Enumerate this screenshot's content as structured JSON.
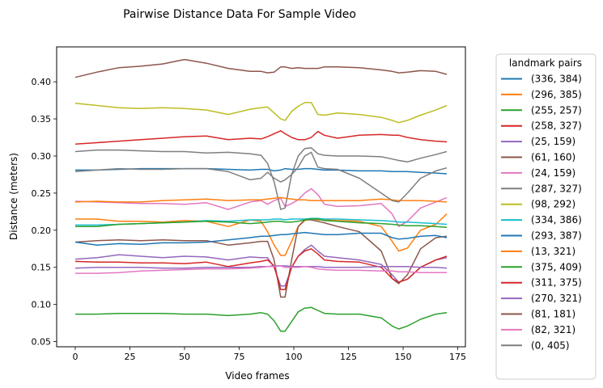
{
  "chart_data": {
    "type": "line",
    "title": "Pairwise Distance Data For Sample Video",
    "xlabel": "Video frames",
    "ylabel": "Distance (meters)",
    "xlim": [
      -8.5,
      178.5
    ],
    "ylim": [
      0.043,
      0.447
    ],
    "xticks": [
      0,
      25,
      50,
      75,
      100,
      125,
      150,
      175
    ],
    "yticks": [
      0.05,
      0.1,
      0.15,
      0.2,
      0.25,
      0.3,
      0.35,
      0.4
    ],
    "ytick_labels": [
      "0.05",
      "0.10",
      "0.15",
      "0.20",
      "0.25",
      "0.30",
      "0.35",
      "0.40"
    ],
    "grid": false,
    "legend": {
      "title": "landmark pairs",
      "placement": "outside-right"
    },
    "x": [
      0,
      10,
      20,
      30,
      40,
      50,
      60,
      70,
      80,
      85,
      88,
      91,
      94,
      96,
      99,
      102,
      105,
      108,
      111,
      114,
      120,
      130,
      140,
      145,
      148,
      152,
      158,
      165,
      170
    ],
    "series": [
      {
        "name": "(336, 384)",
        "color": "#1f77b4",
        "values": [
          0.281,
          0.281,
          0.282,
          0.283,
          0.283,
          0.283,
          0.283,
          0.282,
          0.281,
          0.282,
          0.282,
          0.28,
          0.281,
          0.283,
          0.282,
          0.282,
          0.283,
          0.283,
          0.282,
          0.281,
          0.281,
          0.28,
          0.28,
          0.279,
          0.279,
          0.279,
          0.278,
          0.277,
          0.276
        ]
      },
      {
        "name": "(296, 385)",
        "color": "#ff7f0e",
        "values": [
          0.215,
          0.215,
          0.212,
          0.212,
          0.211,
          0.213,
          0.212,
          0.205,
          0.214,
          0.212,
          0.198,
          0.18,
          0.166,
          0.166,
          0.185,
          0.205,
          0.213,
          0.216,
          0.214,
          0.214,
          0.213,
          0.212,
          0.205,
          0.185,
          0.172,
          0.176,
          0.2,
          0.208,
          0.222
        ]
      },
      {
        "name": "(255, 257)",
        "color": "#2ca02c",
        "values": [
          0.087,
          0.087,
          0.088,
          0.088,
          0.088,
          0.087,
          0.087,
          0.085,
          0.087,
          0.089,
          0.087,
          0.078,
          0.064,
          0.064,
          0.077,
          0.09,
          0.095,
          0.096,
          0.092,
          0.088,
          0.087,
          0.087,
          0.082,
          0.071,
          0.067,
          0.071,
          0.08,
          0.087,
          0.089
        ]
      },
      {
        "name": "(258, 327)",
        "color": "#d62728",
        "values": [
          0.316,
          0.318,
          0.32,
          0.322,
          0.324,
          0.326,
          0.327,
          0.322,
          0.324,
          0.323,
          0.326,
          0.33,
          0.334,
          0.33,
          0.325,
          0.322,
          0.322,
          0.325,
          0.333,
          0.328,
          0.324,
          0.328,
          0.329,
          0.328,
          0.328,
          0.325,
          0.322,
          0.32,
          0.319
        ]
      },
      {
        "name": "(25, 159)",
        "color": "#9467bd",
        "values": [
          0.161,
          0.163,
          0.167,
          0.165,
          0.163,
          0.165,
          0.164,
          0.16,
          0.164,
          0.163,
          0.163,
          0.15,
          0.125,
          0.125,
          0.15,
          0.165,
          0.174,
          0.18,
          0.172,
          0.165,
          0.163,
          0.16,
          0.154,
          0.14,
          0.13,
          0.134,
          0.15,
          0.16,
          0.163
        ]
      },
      {
        "name": "(61, 160)",
        "color": "#8c564b",
        "values": [
          0.184,
          0.186,
          0.187,
          0.186,
          0.187,
          0.186,
          0.186,
          0.18,
          0.183,
          0.185,
          0.185,
          0.16,
          0.11,
          0.11,
          0.16,
          0.205,
          0.214,
          0.214,
          0.212,
          0.21,
          0.205,
          0.198,
          0.172,
          0.135,
          0.128,
          0.14,
          0.175,
          0.19,
          0.192
        ]
      },
      {
        "name": "(24, 159)",
        "color": "#e377c2",
        "values": [
          0.239,
          0.238,
          0.237,
          0.236,
          0.236,
          0.235,
          0.237,
          0.228,
          0.238,
          0.24,
          0.235,
          0.24,
          0.243,
          0.232,
          0.236,
          0.241,
          0.25,
          0.256,
          0.248,
          0.235,
          0.232,
          0.233,
          0.236,
          0.222,
          0.205,
          0.212,
          0.23,
          0.238,
          0.244
        ]
      },
      {
        "name": "(287, 327)",
        "color": "#7f7f7f",
        "values": [
          0.306,
          0.308,
          0.308,
          0.307,
          0.306,
          0.306,
          0.304,
          0.305,
          0.303,
          0.301,
          0.29,
          0.265,
          0.228,
          0.23,
          0.275,
          0.3,
          0.31,
          0.311,
          0.303,
          0.301,
          0.3,
          0.3,
          0.299,
          0.296,
          0.294,
          0.292,
          0.297,
          0.302,
          0.306
        ]
      },
      {
        "name": "(98, 292)",
        "color": "#bcbd22",
        "values": [
          0.371,
          0.368,
          0.365,
          0.364,
          0.365,
          0.364,
          0.362,
          0.356,
          0.363,
          0.365,
          0.366,
          0.358,
          0.35,
          0.348,
          0.36,
          0.367,
          0.372,
          0.372,
          0.356,
          0.355,
          0.358,
          0.356,
          0.352,
          0.348,
          0.345,
          0.348,
          0.355,
          0.362,
          0.368
        ]
      },
      {
        "name": "(334, 386)",
        "color": "#17becf",
        "values": [
          0.207,
          0.207,
          0.208,
          0.209,
          0.21,
          0.211,
          0.213,
          0.212,
          0.214,
          0.214,
          0.214,
          0.215,
          0.215,
          0.214,
          0.215,
          0.215,
          0.215,
          0.216,
          0.216,
          0.215,
          0.215,
          0.214,
          0.213,
          0.212,
          0.211,
          0.211,
          0.21,
          0.209,
          0.208
        ]
      },
      {
        "name": "(293, 387)",
        "color": "#1f77b4",
        "values": [
          0.184,
          0.18,
          0.182,
          0.181,
          0.183,
          0.183,
          0.184,
          0.187,
          0.19,
          0.192,
          0.192,
          0.193,
          0.194,
          0.194,
          0.195,
          0.196,
          0.197,
          0.196,
          0.195,
          0.194,
          0.194,
          0.196,
          0.196,
          0.19,
          0.188,
          0.189,
          0.192,
          0.193,
          0.19
        ]
      },
      {
        "name": "(13, 321)",
        "color": "#ff7f0e",
        "values": [
          0.238,
          0.239,
          0.238,
          0.238,
          0.24,
          0.241,
          0.242,
          0.24,
          0.241,
          0.241,
          0.242,
          0.243,
          0.244,
          0.243,
          0.242,
          0.241,
          0.241,
          0.24,
          0.24,
          0.24,
          0.24,
          0.24,
          0.242,
          0.241,
          0.24,
          0.24,
          0.24,
          0.239,
          0.238
        ]
      },
      {
        "name": "(375, 409)",
        "color": "#2ca02c",
        "values": [
          0.205,
          0.205,
          0.208,
          0.209,
          0.21,
          0.211,
          0.212,
          0.211,
          0.209,
          0.21,
          0.211,
          0.212,
          0.212,
          0.211,
          0.211,
          0.212,
          0.214,
          0.215,
          0.215,
          0.213,
          0.212,
          0.21,
          0.209,
          0.208,
          0.207,
          0.206,
          0.206,
          0.205,
          0.204
        ]
      },
      {
        "name": "(311, 375)",
        "color": "#d62728",
        "values": [
          0.158,
          0.157,
          0.157,
          0.156,
          0.156,
          0.155,
          0.157,
          0.151,
          0.156,
          0.158,
          0.16,
          0.152,
          0.12,
          0.12,
          0.15,
          0.165,
          0.172,
          0.175,
          0.168,
          0.16,
          0.158,
          0.157,
          0.15,
          0.135,
          0.13,
          0.134,
          0.15,
          0.16,
          0.165
        ]
      },
      {
        "name": "(270, 321)",
        "color": "#9467bd",
        "values": [
          0.149,
          0.15,
          0.15,
          0.15,
          0.149,
          0.149,
          0.15,
          0.15,
          0.15,
          0.151,
          0.151,
          0.152,
          0.152,
          0.152,
          0.151,
          0.151,
          0.151,
          0.151,
          0.151,
          0.15,
          0.15,
          0.15,
          0.151,
          0.151,
          0.151,
          0.151,
          0.15,
          0.15,
          0.149
        ]
      },
      {
        "name": "(81, 181)",
        "color": "#8c564b",
        "values": [
          0.406,
          0.413,
          0.419,
          0.421,
          0.424,
          0.43,
          0.425,
          0.418,
          0.414,
          0.414,
          0.412,
          0.413,
          0.42,
          0.42,
          0.418,
          0.419,
          0.418,
          0.418,
          0.418,
          0.42,
          0.42,
          0.419,
          0.416,
          0.414,
          0.412,
          0.413,
          0.415,
          0.414,
          0.41
        ]
      },
      {
        "name": "(82, 321)",
        "color": "#e377c2",
        "values": [
          0.142,
          0.142,
          0.143,
          0.145,
          0.146,
          0.147,
          0.148,
          0.148,
          0.149,
          0.15,
          0.151,
          0.151,
          0.152,
          0.15,
          0.15,
          0.15,
          0.151,
          0.15,
          0.148,
          0.147,
          0.146,
          0.146,
          0.145,
          0.145,
          0.144,
          0.144,
          0.143,
          0.143,
          0.143
        ]
      },
      {
        "name": "(0, 405)",
        "color": "#7f7f7f",
        "values": [
          0.279,
          0.281,
          0.283,
          0.282,
          0.282,
          0.283,
          0.283,
          0.279,
          0.268,
          0.27,
          0.278,
          0.27,
          0.265,
          0.268,
          0.275,
          0.285,
          0.3,
          0.305,
          0.285,
          0.283,
          0.282,
          0.27,
          0.25,
          0.24,
          0.238,
          0.25,
          0.27,
          0.28,
          0.284
        ]
      }
    ]
  }
}
